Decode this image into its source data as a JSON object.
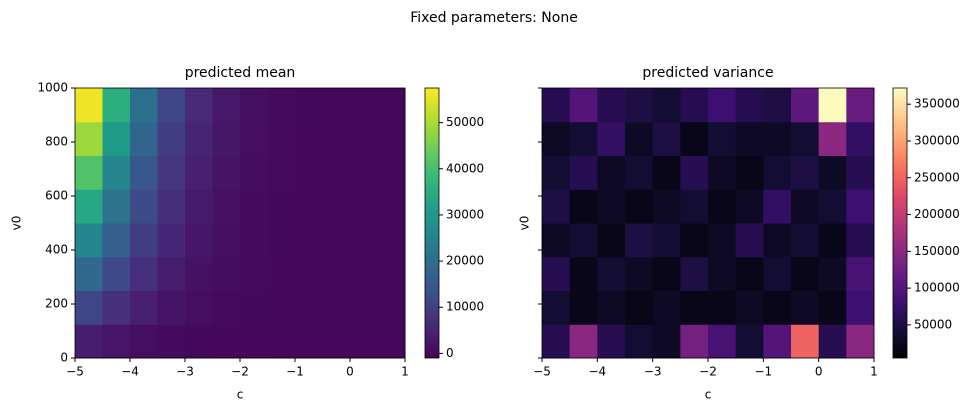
{
  "suptitle": "Fixed parameters: None",
  "chart_data": [
    {
      "type": "heatmap",
      "title": "predicted mean",
      "x_label": "c",
      "y_label": "v0",
      "colormap": "viridis",
      "xlim": [
        -5,
        1
      ],
      "ylim": [
        0,
        1000
      ],
      "xticks": [
        {
          "value": -5,
          "label": "−5"
        },
        {
          "value": -4,
          "label": "−4"
        },
        {
          "value": -3,
          "label": "−3"
        },
        {
          "value": -2,
          "label": "−2"
        },
        {
          "value": -1,
          "label": "−1"
        },
        0,
        1
      ],
      "yticks": [
        0,
        200,
        400,
        600,
        800,
        1000
      ],
      "ytick_labels": true,
      "z": [
        [
          3720,
          2360,
          1360,
          740,
          370,
          190,
          90,
          40,
          20,
          10,
          0,
          0
        ],
        [
          11220,
          7110,
          4110,
          2240,
          1120,
          560,
          260,
          130,
          60,
          20,
          0,
          0
        ],
        [
          18720,
          11860,
          6860,
          3740,
          1870,
          940,
          440,
          220,
          90,
          30,
          0,
          0
        ],
        [
          26220,
          16610,
          9610,
          5240,
          2620,
          1310,
          610,
          310,
          130,
          40,
          0,
          0
        ],
        [
          33720,
          21360,
          12360,
          6740,
          3370,
          1690,
          790,
          390,
          170,
          60,
          0,
          0
        ],
        [
          41220,
          26110,
          15110,
          8240,
          4120,
          2060,
          960,
          480,
          210,
          70,
          0,
          0
        ],
        [
          48720,
          30860,
          17860,
          9740,
          4870,
          2440,
          1140,
          570,
          240,
          80,
          0,
          0
        ],
        [
          56220,
          35610,
          20610,
          11240,
          5620,
          2810,
          1310,
          660,
          280,
          90,
          0,
          0
        ]
      ],
      "colorbar": {
        "lim": [
          -1000,
          57500
        ],
        "ticks": [
          0,
          10000,
          20000,
          30000,
          40000,
          50000
        ]
      }
    },
    {
      "type": "heatmap",
      "title": "predicted variance",
      "x_label": "c",
      "y_label": "v0",
      "colormap": "magma",
      "xlim": [
        -5,
        1
      ],
      "ylim": [
        0,
        1000
      ],
      "xticks": [
        {
          "value": -5,
          "label": "−5"
        },
        {
          "value": -4,
          "label": "−4"
        },
        {
          "value": -3,
          "label": "−3"
        },
        {
          "value": -2,
          "label": "−2"
        },
        {
          "value": -1,
          "label": "−1"
        },
        0,
        1
      ],
      "yticks": [
        0,
        200,
        400,
        600,
        800,
        1000
      ],
      "ytick_labels": false,
      "z": [
        [
          60000,
          150000,
          60000,
          40000,
          30000,
          130000,
          90000,
          40000,
          100000,
          250000,
          60000,
          150000
        ],
        [
          40000,
          20000,
          30000,
          20000,
          30000,
          20000,
          20000,
          30000,
          20000,
          30000,
          20000,
          80000
        ],
        [
          60000,
          20000,
          40000,
          30000,
          20000,
          50000,
          30000,
          20000,
          40000,
          20000,
          30000,
          90000
        ],
        [
          30000,
          40000,
          20000,
          50000,
          40000,
          20000,
          30000,
          60000,
          30000,
          40000,
          20000,
          60000
        ],
        [
          50000,
          20000,
          30000,
          20000,
          30000,
          40000,
          20000,
          30000,
          70000,
          30000,
          40000,
          80000
        ],
        [
          40000,
          60000,
          30000,
          40000,
          20000,
          60000,
          30000,
          20000,
          40000,
          50000,
          30000,
          60000
        ],
        [
          30000,
          40000,
          70000,
          30000,
          50000,
          20000,
          40000,
          30000,
          30000,
          40000,
          150000,
          70000
        ],
        [
          60000,
          100000,
          60000,
          50000,
          40000,
          60000,
          80000,
          60000,
          50000,
          110000,
          370000,
          120000
        ]
      ],
      "colorbar": {
        "lim": [
          5000,
          372000
        ],
        "ticks": [
          50000,
          100000,
          150000,
          200000,
          250000,
          300000,
          350000
        ]
      }
    }
  ]
}
